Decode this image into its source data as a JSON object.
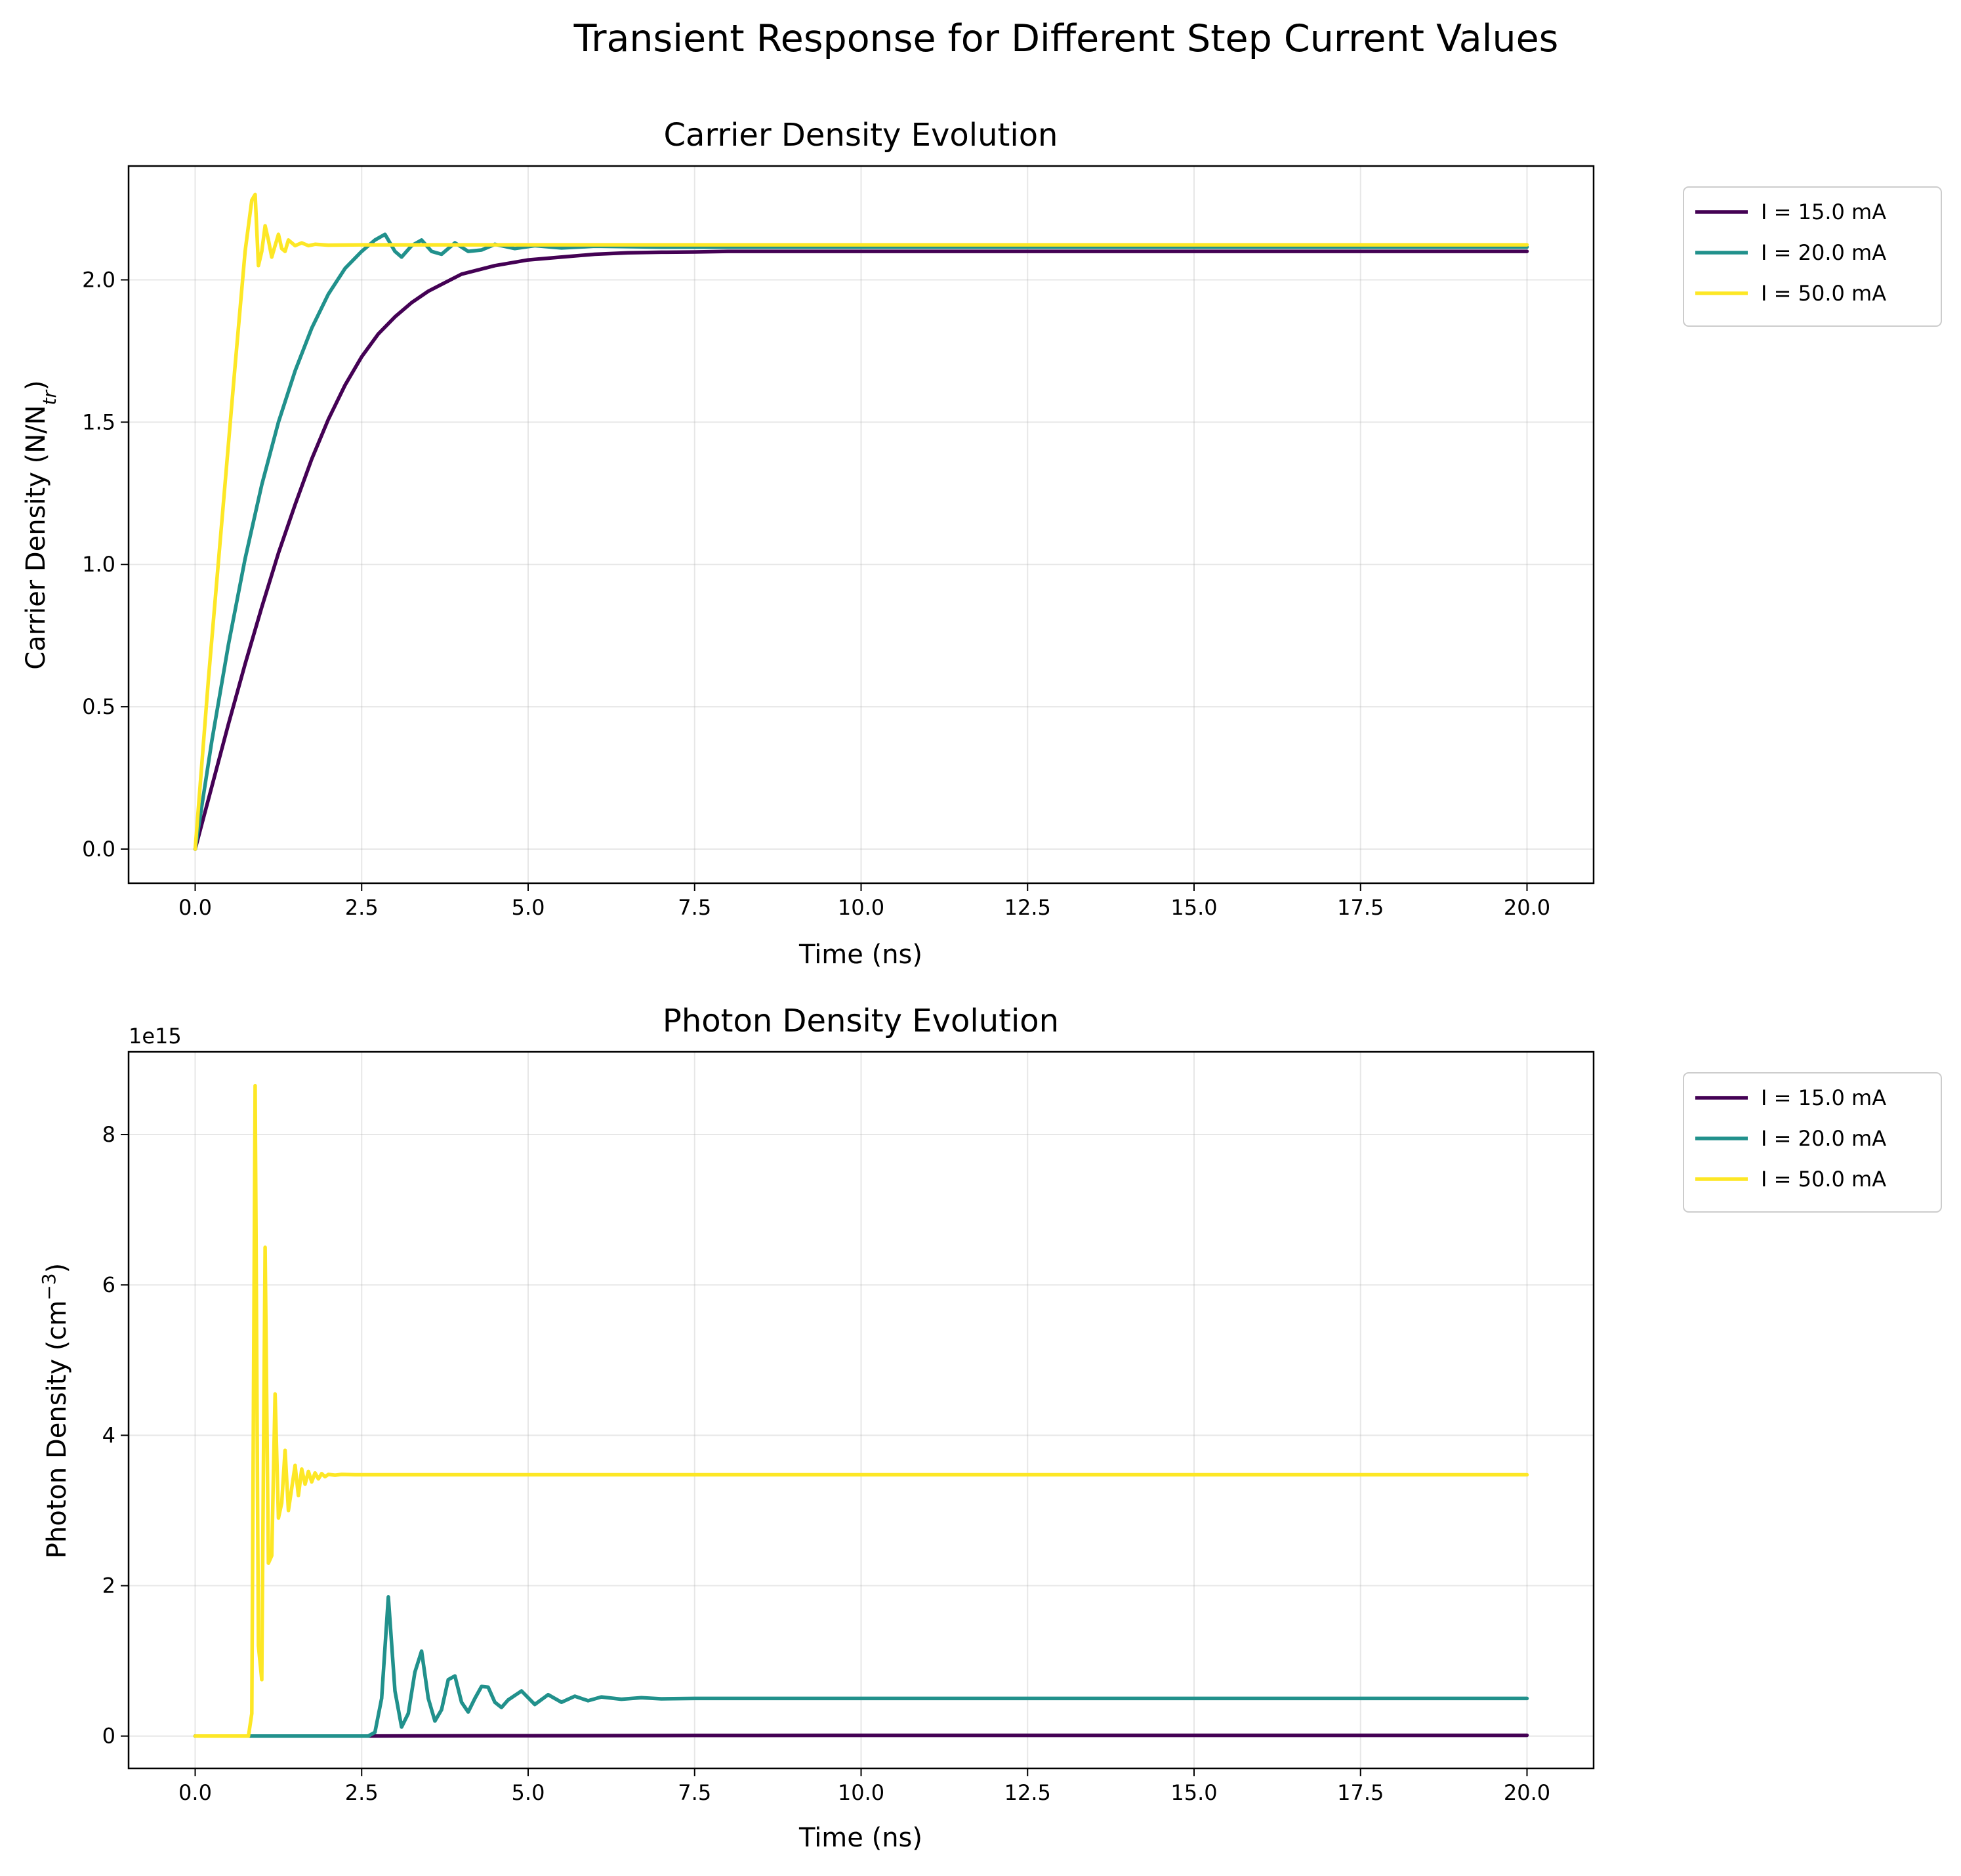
{
  "figure": {
    "suptitle": "Transient Response for Different Step Current Values"
  },
  "colors": {
    "I15": "#440154",
    "I20": "#21918c",
    "I50": "#fde725"
  },
  "chart_data": [
    {
      "type": "line",
      "title": "Carrier Density Evolution",
      "xlabel": "Time (ns)",
      "ylabel": "Carrier Density (N/N",
      "ylabel_sub": "tr",
      "ylabel_end": ")",
      "xlim": [
        -1.0,
        21.0
      ],
      "ylim": [
        -0.12,
        2.4
      ],
      "xticks": [
        0.0,
        2.5,
        5.0,
        7.5,
        10.0,
        12.5,
        15.0,
        17.5,
        20.0
      ],
      "xtick_labels": [
        "0.0",
        "2.5",
        "5.0",
        "7.5",
        "10.0",
        "12.5",
        "15.0",
        "17.5",
        "20.0"
      ],
      "yticks": [
        0.0,
        0.5,
        1.0,
        1.5,
        2.0
      ],
      "ytick_labels": [
        "0.0",
        "0.5",
        "1.0",
        "1.5",
        "2.0"
      ],
      "grid": true,
      "legend_position": "outside-top-right",
      "series": [
        {
          "name": "I = 15.0 mA",
          "color_key": "I15",
          "x": [
            0,
            0.25,
            0.5,
            0.75,
            1.0,
            1.25,
            1.5,
            1.75,
            2.0,
            2.25,
            2.5,
            2.75,
            3.0,
            3.25,
            3.5,
            3.75,
            4.0,
            4.5,
            5.0,
            5.5,
            6.0,
            6.5,
            7.0,
            7.5,
            8.0,
            9.0,
            10.0,
            12.5,
            15.0,
            17.5,
            20.0
          ],
          "y": [
            0.0,
            0.22,
            0.44,
            0.65,
            0.85,
            1.04,
            1.21,
            1.37,
            1.51,
            1.63,
            1.73,
            1.81,
            1.87,
            1.92,
            1.96,
            1.99,
            2.02,
            2.05,
            2.07,
            2.08,
            2.09,
            2.095,
            2.097,
            2.098,
            2.1,
            2.1,
            2.1,
            2.1,
            2.1,
            2.1,
            2.1
          ]
        },
        {
          "name": "I = 20.0 mA",
          "color_key": "I20",
          "x": [
            0,
            0.25,
            0.5,
            0.75,
            1.0,
            1.25,
            1.5,
            1.75,
            2.0,
            2.25,
            2.5,
            2.7,
            2.85,
            3.0,
            3.1,
            3.25,
            3.4,
            3.55,
            3.7,
            3.9,
            4.1,
            4.3,
            4.5,
            4.8,
            5.1,
            5.5,
            6.0,
            7.0,
            8.0,
            10.0,
            12.5,
            15.0,
            17.5,
            20.0
          ],
          "y": [
            0.0,
            0.38,
            0.72,
            1.02,
            1.28,
            1.5,
            1.68,
            1.83,
            1.95,
            2.04,
            2.1,
            2.14,
            2.16,
            2.1,
            2.08,
            2.12,
            2.14,
            2.1,
            2.09,
            2.13,
            2.1,
            2.105,
            2.125,
            2.11,
            2.12,
            2.112,
            2.118,
            2.115,
            2.115,
            2.115,
            2.115,
            2.115,
            2.115,
            2.115
          ]
        },
        {
          "name": "I = 50.0 mA",
          "color_key": "I50",
          "x": [
            0,
            0.2,
            0.4,
            0.6,
            0.75,
            0.85,
            0.9,
            0.95,
            1.0,
            1.05,
            1.1,
            1.15,
            1.2,
            1.25,
            1.3,
            1.35,
            1.4,
            1.5,
            1.6,
            1.7,
            1.8,
            2.0,
            2.5,
            3.0,
            5.0,
            10.0,
            15.0,
            20.0
          ],
          "y": [
            0.0,
            0.6,
            1.15,
            1.7,
            2.1,
            2.28,
            2.3,
            2.05,
            2.1,
            2.19,
            2.14,
            2.08,
            2.12,
            2.16,
            2.11,
            2.1,
            2.14,
            2.12,
            2.13,
            2.12,
            2.125,
            2.122,
            2.123,
            2.123,
            2.123,
            2.123,
            2.123,
            2.123
          ]
        }
      ]
    },
    {
      "type": "line",
      "title": "Photon Density Evolution",
      "xlabel": "Time (ns)",
      "ylabel": "Photon Density (cm",
      "ylabel_sup": "−3",
      "ylabel_end": ")",
      "offset_text": "1e15",
      "xlim": [
        -1.0,
        21.0
      ],
      "ylim": [
        -0.43,
        9.1
      ],
      "xticks": [
        0.0,
        2.5,
        5.0,
        7.5,
        10.0,
        12.5,
        15.0,
        17.5,
        20.0
      ],
      "xtick_labels": [
        "0.0",
        "2.5",
        "5.0",
        "7.5",
        "10.0",
        "12.5",
        "15.0",
        "17.5",
        "20.0"
      ],
      "yticks": [
        0,
        2,
        4,
        6,
        8
      ],
      "ytick_labels": [
        "0",
        "2",
        "4",
        "6",
        "8"
      ],
      "grid": true,
      "legend_position": "outside-top-right",
      "series": [
        {
          "name": "I = 15.0 mA",
          "color_key": "I15",
          "x": [
            0,
            2.5,
            5.0,
            7.5,
            10.0,
            12.5,
            15.0,
            17.5,
            20.0
          ],
          "y": [
            0.0,
            0.0,
            0.005,
            0.008,
            0.01,
            0.01,
            0.01,
            0.01,
            0.01
          ]
        },
        {
          "name": "I = 20.0 mA",
          "color_key": "I20",
          "x": [
            0,
            2.6,
            2.7,
            2.8,
            2.9,
            3.0,
            3.1,
            3.2,
            3.3,
            3.4,
            3.5,
            3.6,
            3.7,
            3.8,
            3.9,
            4.0,
            4.1,
            4.2,
            4.3,
            4.4,
            4.5,
            4.6,
            4.7,
            4.9,
            5.1,
            5.3,
            5.5,
            5.7,
            5.9,
            6.1,
            6.4,
            6.7,
            7.0,
            7.5,
            8.0,
            9.0,
            10.0,
            12.5,
            15.0,
            17.5,
            20.0
          ],
          "y": [
            0.0,
            0.0,
            0.05,
            0.5,
            1.85,
            0.6,
            0.12,
            0.3,
            0.85,
            1.13,
            0.5,
            0.2,
            0.35,
            0.75,
            0.8,
            0.45,
            0.32,
            0.5,
            0.66,
            0.65,
            0.45,
            0.38,
            0.48,
            0.6,
            0.42,
            0.55,
            0.45,
            0.53,
            0.47,
            0.52,
            0.49,
            0.51,
            0.495,
            0.5,
            0.5,
            0.5,
            0.5,
            0.5,
            0.5,
            0.5,
            0.5
          ]
        },
        {
          "name": "I = 50.0 mA",
          "color_key": "I50",
          "x": [
            0,
            0.8,
            0.85,
            0.9,
            0.95,
            1.0,
            1.05,
            1.1,
            1.15,
            1.2,
            1.25,
            1.3,
            1.35,
            1.4,
            1.45,
            1.5,
            1.55,
            1.6,
            1.65,
            1.7,
            1.75,
            1.8,
            1.85,
            1.9,
            1.95,
            2.0,
            2.1,
            2.2,
            2.4,
            2.6,
            3.0,
            5.0,
            10.0,
            15.0,
            20.0
          ],
          "y": [
            0.0,
            0.0,
            0.3,
            8.65,
            1.2,
            0.75,
            6.5,
            2.3,
            2.4,
            4.55,
            2.9,
            3.1,
            3.8,
            3.0,
            3.3,
            3.6,
            3.2,
            3.55,
            3.35,
            3.52,
            3.38,
            3.5,
            3.42,
            3.49,
            3.45,
            3.48,
            3.47,
            3.48,
            3.475,
            3.475,
            3.475,
            3.475,
            3.475,
            3.475,
            3.475
          ]
        }
      ]
    }
  ]
}
